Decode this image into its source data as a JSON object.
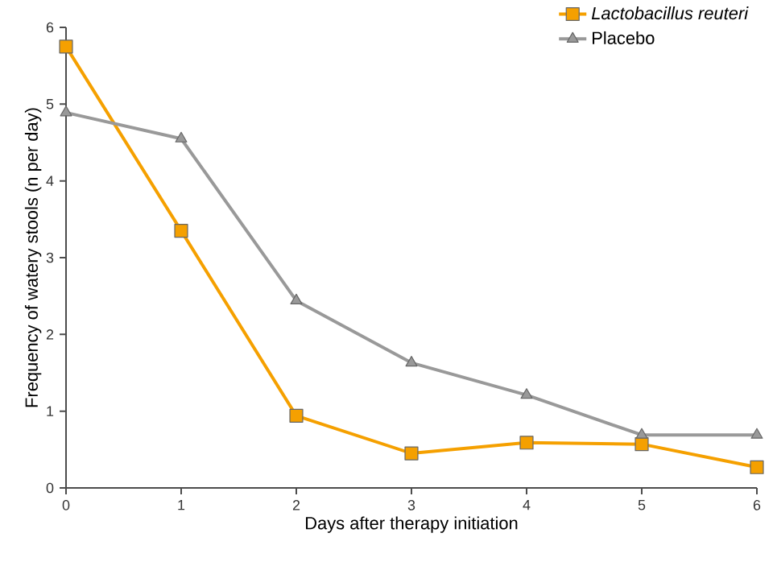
{
  "chart_data": {
    "type": "line",
    "xlabel": "Days after therapy initiation",
    "ylabel": "Frequency of watery stools (n per day)",
    "x": [
      0,
      1,
      2,
      3,
      4,
      5,
      6
    ],
    "series": [
      {
        "name": "*Lactobacillus reuteri*",
        "color": "#f5a000",
        "marker": "square",
        "values": [
          5.75,
          3.35,
          0.94,
          0.45,
          0.59,
          0.57,
          0.27
        ]
      },
      {
        "name": "Placebo",
        "color": "#999999",
        "marker": "triangle",
        "values": [
          4.89,
          4.55,
          2.44,
          1.63,
          1.21,
          0.69,
          0.69
        ]
      }
    ],
    "xlim": [
      0,
      6
    ],
    "ylim": [
      0,
      6
    ],
    "xticks": [
      0,
      1,
      2,
      3,
      4,
      5,
      6
    ],
    "yticks": [
      0,
      1,
      2,
      3,
      4,
      5,
      6
    ],
    "grid": false,
    "legend": "top right",
    "line_style": "solid"
  }
}
